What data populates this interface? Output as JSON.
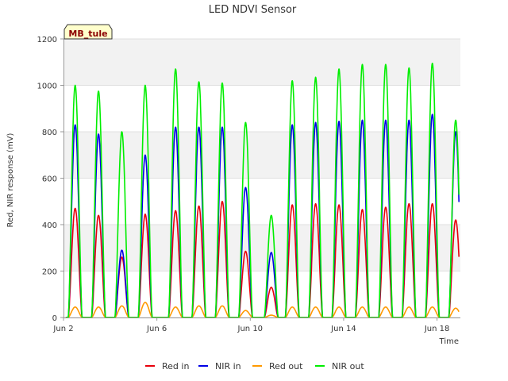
{
  "chart_data": {
    "type": "line",
    "title": "LED NDVI Sensor",
    "site_tag": "MB_tule",
    "xlabel": "Time",
    "ylabel": "Red, NIR response (mV)",
    "xlim": [
      2.0,
      19.0
    ],
    "ylim": [
      0,
      1200
    ],
    "xticks": [
      {
        "x": 2,
        "label": "Jun 2"
      },
      {
        "x": 6,
        "label": "Jun 6"
      },
      {
        "x": 10,
        "label": "Jun 10"
      },
      {
        "x": 14,
        "label": "Jun 14"
      },
      {
        "x": 18,
        "label": "Jun 18"
      }
    ],
    "yticks": [
      0,
      200,
      400,
      600,
      800,
      1000,
      1200
    ],
    "grid": true,
    "legend_position": "bottom",
    "day_peaks": [
      {
        "day": 2.5,
        "red_in": 470,
        "nir_in": 830,
        "red_out": 45,
        "nir_out": 1000
      },
      {
        "day": 3.5,
        "red_in": 440,
        "nir_in": 790,
        "red_out": 45,
        "nir_out": 975
      },
      {
        "day": 4.5,
        "red_in": 260,
        "nir_in": 290,
        "red_out": 50,
        "nir_out": 800
      },
      {
        "day": 5.5,
        "red_in": 445,
        "nir_in": 700,
        "red_out": 65,
        "nir_out": 1000
      },
      {
        "day": 6.8,
        "red_in": 460,
        "nir_in": 820,
        "red_out": 45,
        "nir_out": 1070
      },
      {
        "day": 7.8,
        "red_in": 480,
        "nir_in": 820,
        "red_out": 50,
        "nir_out": 1015
      },
      {
        "day": 8.8,
        "red_in": 500,
        "nir_in": 820,
        "red_out": 50,
        "nir_out": 1010
      },
      {
        "day": 9.8,
        "red_in": 285,
        "nir_in": 560,
        "red_out": 30,
        "nir_out": 840
      },
      {
        "day": 10.9,
        "red_in": 130,
        "nir_in": 280,
        "red_out": 10,
        "nir_out": 440
      },
      {
        "day": 11.8,
        "red_in": 485,
        "nir_in": 830,
        "red_out": 45,
        "nir_out": 1020
      },
      {
        "day": 12.8,
        "red_in": 490,
        "nir_in": 840,
        "red_out": 45,
        "nir_out": 1035
      },
      {
        "day": 13.8,
        "red_in": 485,
        "nir_in": 845,
        "red_out": 45,
        "nir_out": 1070
      },
      {
        "day": 14.8,
        "red_in": 465,
        "nir_in": 850,
        "red_out": 45,
        "nir_out": 1090
      },
      {
        "day": 15.8,
        "red_in": 475,
        "nir_in": 850,
        "red_out": 45,
        "nir_out": 1090
      },
      {
        "day": 16.8,
        "red_in": 490,
        "nir_in": 850,
        "red_out": 45,
        "nir_out": 1075
      },
      {
        "day": 17.8,
        "red_in": 490,
        "nir_in": 875,
        "red_out": 45,
        "nir_out": 1095
      },
      {
        "day": 18.8,
        "red_in": 420,
        "nir_in": 800,
        "red_out": 40,
        "nir_out": 850
      }
    ],
    "series": [
      {
        "name": "Red in",
        "key": "red_in",
        "color": "#e8000b"
      },
      {
        "name": "NIR in",
        "key": "nir_in",
        "color": "#0000e6"
      },
      {
        "name": "Red out",
        "key": "red_out",
        "color": "#ff9900"
      },
      {
        "name": "NIR out",
        "key": "nir_out",
        "color": "#00ee00"
      }
    ]
  }
}
